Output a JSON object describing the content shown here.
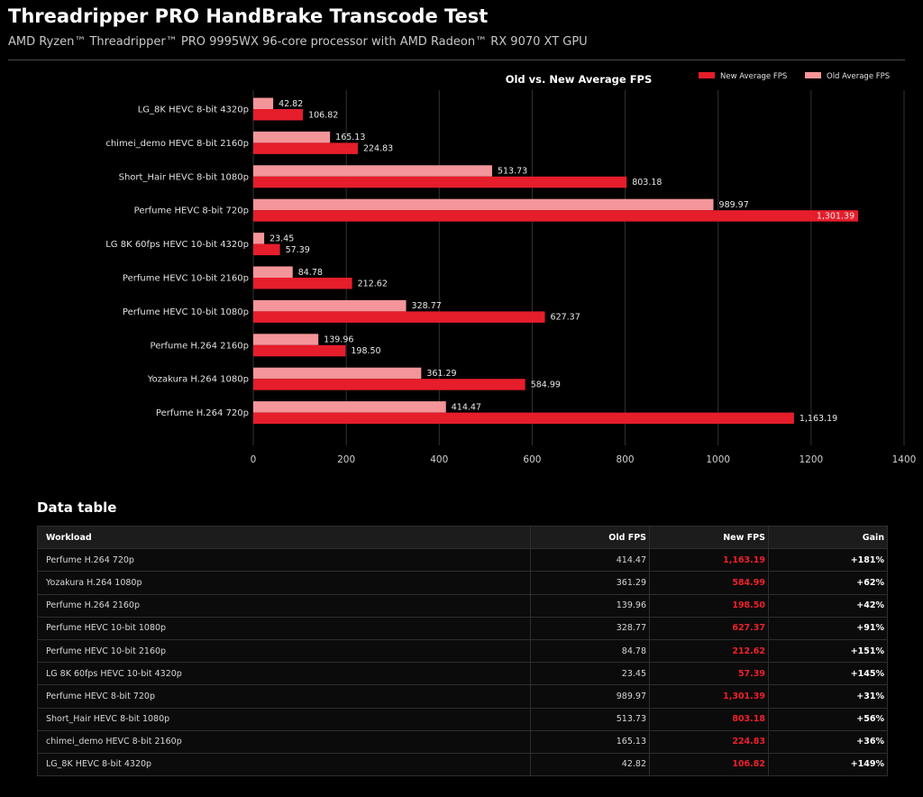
{
  "header": {
    "title": "Threadripper PRO HandBrake Transcode Test",
    "subtitle": "AMD Ryzen™ Threadripper™ PRO 9995WX 96-core processor with AMD Radeon™ RX 9070 XT GPU"
  },
  "colors": {
    "new_series": "#e61d2b",
    "old_series": "#f4959a",
    "background": "#000000",
    "gridline": "#333333"
  },
  "chart_data": {
    "type": "bar",
    "orientation": "horizontal",
    "title": "Old vs. New Average FPS",
    "categories": [
      "LG_8K HEVC 8-bit 4320p",
      "chimei_demo HEVC 8-bit 2160p",
      "Short_Hair HEVC 8-bit 1080p",
      "Perfume HEVC 8-bit 720p",
      "LG 8K 60fps HEVC 10-bit 4320p",
      "Perfume HEVC 10-bit 2160p",
      "Perfume HEVC 10-bit 1080p",
      "Perfume H.264 2160p",
      "Yozakura H.264 1080p",
      "Perfume H.264 720p"
    ],
    "series": [
      {
        "name": "Old Average FPS",
        "values": [
          42.82,
          165.13,
          513.73,
          989.97,
          23.45,
          84.78,
          328.77,
          139.96,
          361.29,
          414.47
        ],
        "labels": [
          "42.82",
          "165.13",
          "513.73",
          "989.97",
          "23.45",
          "84.78",
          "328.77",
          "139.96",
          "361.29",
          "414.47"
        ]
      },
      {
        "name": "New Average FPS",
        "values": [
          106.82,
          224.83,
          803.18,
          1301.39,
          57.39,
          212.62,
          627.37,
          198.5,
          584.99,
          1163.19
        ],
        "labels": [
          "106.82",
          "224.83",
          "803.18",
          "1,301.39",
          "57.39",
          "212.62",
          "627.37",
          "198.50",
          "584.99",
          "1,163.19"
        ]
      }
    ],
    "legend": [
      "New Average FPS",
      "Old Average FPS"
    ],
    "legend_position": "top-right",
    "xlim": [
      0,
      1400
    ],
    "xticks": [
      0,
      200,
      400,
      600,
      800,
      1000,
      1200,
      1400
    ],
    "xtick_labels": [
      "0",
      "200",
      "400",
      "600",
      "800",
      "1000",
      "1200",
      "1400"
    ],
    "grid": true
  },
  "table": {
    "title": "Data table",
    "headers": [
      "Workload",
      "Old FPS",
      "New FPS",
      "Gain"
    ],
    "rows": [
      [
        "Perfume H.264 720p",
        "414.47",
        "1,163.19",
        "+181%"
      ],
      [
        "Yozakura H.264 1080p",
        "361.29",
        "584.99",
        "+62%"
      ],
      [
        "Perfume H.264 2160p",
        "139.96",
        "198.50",
        "+42%"
      ],
      [
        "Perfume HEVC 10-bit 1080p",
        "328.77",
        "627.37",
        "+91%"
      ],
      [
        "Perfume HEVC 10-bit 2160p",
        "84.78",
        "212.62",
        "+151%"
      ],
      [
        "LG 8K 60fps HEVC 10-bit 4320p",
        "23.45",
        "57.39",
        "+145%"
      ],
      [
        "Perfume HEVC 8-bit 720p",
        "989.97",
        "1,301.39",
        "+31%"
      ],
      [
        "Short_Hair HEVC 8-bit 1080p",
        "513.73",
        "803.18",
        "+56%"
      ],
      [
        "chimei_demo HEVC 8-bit 2160p",
        "165.13",
        "224.83",
        "+36%"
      ],
      [
        "LG_8K HEVC 8-bit 4320p",
        "42.82",
        "106.82",
        "+149%"
      ]
    ]
  }
}
